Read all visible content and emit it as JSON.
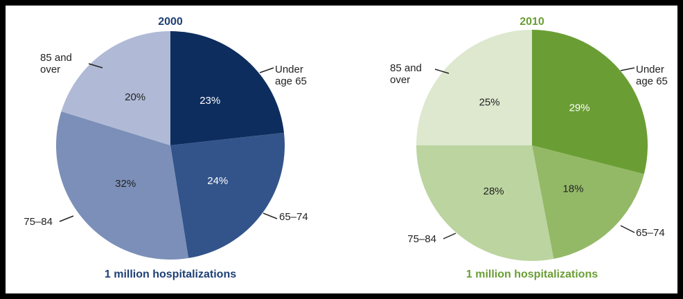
{
  "chart_data": [
    {
      "type": "pie",
      "title": "2000",
      "title_color": "#1c3f74",
      "categories": [
        "Under age 65",
        "65–74",
        "75–84",
        "85 and over"
      ],
      "values": [
        23,
        24,
        32,
        20
      ],
      "value_labels": [
        "23%",
        "24%",
        "32%",
        "20%"
      ],
      "colors": [
        "#0d2d5e",
        "#33548a",
        "#7b8fb8",
        "#b0bad6"
      ],
      "caption": "1 million hospitalizations"
    },
    {
      "type": "pie",
      "title": "2010",
      "title_color": "#6a9e34",
      "categories": [
        "Under age 65",
        "65–74",
        "75–84",
        "85 and over"
      ],
      "values": [
        29,
        18,
        28,
        25
      ],
      "value_labels": [
        "29%",
        "18%",
        "28%",
        "25%"
      ],
      "colors": [
        "#6a9e34",
        "#93b967",
        "#bcd4a0",
        "#dde8cf"
      ],
      "caption": "1 million hospitalizations"
    }
  ]
}
